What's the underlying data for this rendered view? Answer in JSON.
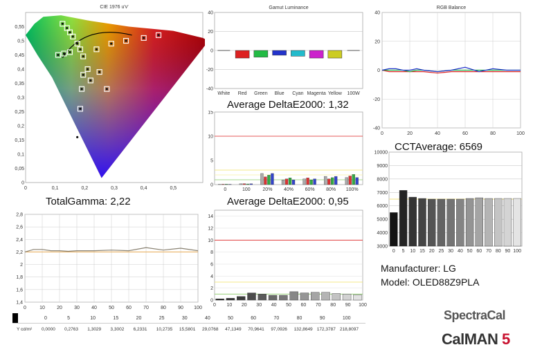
{
  "chart_data": [
    {
      "type": "scatter",
      "title": "CIE 1976 u'v'",
      "xlim": [
        0,
        0.6
      ],
      "ylim": [
        0,
        0.6
      ],
      "xticks": [
        "0",
        "0,1",
        "0,2",
        "0,3",
        "0,4",
        "0,5"
      ],
      "yticks": [
        "0",
        "0,05",
        "0,1",
        "0,15",
        "0,2",
        "0,25",
        "0,3",
        "0,35",
        "0,4",
        "0,45",
        "0,5",
        "0,55"
      ],
      "targets": [
        [
          0.125,
          0.56
        ],
        [
          0.14,
          0.545
        ],
        [
          0.15,
          0.53
        ],
        [
          0.16,
          0.515
        ],
        [
          0.175,
          0.49
        ],
        [
          0.185,
          0.47
        ],
        [
          0.195,
          0.445
        ],
        [
          0.11,
          0.45
        ],
        [
          0.13,
          0.455
        ],
        [
          0.15,
          0.46
        ],
        [
          0.24,
          0.47
        ],
        [
          0.29,
          0.49
        ],
        [
          0.34,
          0.5
        ],
        [
          0.4,
          0.51
        ],
        [
          0.45,
          0.52
        ],
        [
          0.21,
          0.4
        ],
        [
          0.25,
          0.39
        ],
        [
          0.195,
          0.38
        ],
        [
          0.22,
          0.36
        ],
        [
          0.19,
          0.33
        ],
        [
          0.275,
          0.33
        ],
        [
          0.185,
          0.26
        ],
        [
          0.175,
          0.16
        ]
      ],
      "measured": [
        [
          0.125,
          0.56
        ],
        [
          0.14,
          0.545
        ],
        [
          0.15,
          0.53
        ],
        [
          0.16,
          0.515
        ],
        [
          0.175,
          0.49
        ],
        [
          0.185,
          0.47
        ],
        [
          0.195,
          0.445
        ],
        [
          0.11,
          0.45
        ],
        [
          0.13,
          0.455
        ],
        [
          0.15,
          0.46
        ],
        [
          0.24,
          0.47
        ],
        [
          0.29,
          0.49
        ],
        [
          0.34,
          0.5
        ],
        [
          0.4,
          0.51
        ],
        [
          0.45,
          0.52
        ],
        [
          0.21,
          0.4
        ],
        [
          0.25,
          0.39
        ],
        [
          0.195,
          0.38
        ],
        [
          0.22,
          0.36
        ],
        [
          0.19,
          0.33
        ],
        [
          0.275,
          0.33
        ],
        [
          0.185,
          0.26
        ],
        [
          0.175,
          0.16
        ]
      ]
    },
    {
      "type": "bar",
      "title": "Gamut Luminance",
      "categories": [
        "White",
        "Red",
        "Green",
        "Blue",
        "Cyan",
        "Magenta",
        "Yellow",
        "100W"
      ],
      "values": [
        0,
        -8,
        -7,
        -5,
        -6,
        -8,
        -8,
        0
      ],
      "colors": [
        "#888888",
        "#dd2222",
        "#22bb44",
        "#2233cc",
        "#22bbcc",
        "#cc22cc",
        "#cccc22",
        "#888888"
      ],
      "ylim": [
        -40,
        40
      ],
      "yticks": [
        -40,
        -20,
        0,
        20,
        40
      ]
    },
    {
      "type": "line",
      "title": "RGB Balance",
      "x": [
        0,
        5,
        10,
        15,
        20,
        25,
        30,
        40,
        50,
        60,
        70,
        80,
        90,
        100
      ],
      "series": [
        {
          "color": "#dd2222",
          "values": [
            0,
            -1,
            -1,
            -1,
            -1,
            -1,
            -1,
            -2,
            -1,
            -1,
            -1,
            -1,
            -1,
            -1
          ]
        },
        {
          "color": "#22aa44",
          "values": [
            0,
            0,
            0,
            0,
            -1,
            0,
            0,
            -1,
            0,
            0,
            0,
            0,
            0,
            0
          ]
        },
        {
          "color": "#2233cc",
          "values": [
            0,
            1,
            1,
            0,
            0,
            1,
            0,
            -1,
            0,
            2,
            -1,
            1,
            0,
            0
          ]
        }
      ],
      "ylim": [
        -40,
        40
      ],
      "yticks": [
        -40,
        -20,
        0,
        20,
        40
      ],
      "xticks": [
        0,
        20,
        40,
        60,
        80,
        100
      ]
    },
    {
      "type": "bar",
      "title": "Average DeltaE2000: 1,32",
      "categories": [
        "0",
        "100",
        "20%",
        "40%",
        "60%",
        "80%",
        "100%"
      ],
      "values": [
        0.1,
        0.2,
        2.3,
        1.4,
        1.4,
        1.7,
        2.1
      ],
      "ylim": [
        0,
        15
      ],
      "yticks": [
        0,
        5,
        10,
        15
      ]
    },
    {
      "type": "bar",
      "title": "CCTAverage: 6569",
      "categories": [
        "0",
        "5",
        "10",
        "15",
        "20",
        "25",
        "30",
        "40",
        "50",
        "60",
        "70",
        "80",
        "90",
        "100"
      ],
      "values": [
        5500,
        7150,
        6650,
        6550,
        6500,
        6500,
        6500,
        6500,
        6550,
        6600,
        6550,
        6550,
        6550,
        6550
      ],
      "ylim": [
        3000,
        10000
      ],
      "yticks": [
        3000,
        4000,
        5000,
        6000,
        7000,
        8000,
        9000,
        10000
      ]
    },
    {
      "type": "line",
      "title": "TotalGamma: 2,22",
      "x": [
        0,
        5,
        10,
        15,
        20,
        25,
        30,
        40,
        50,
        60,
        70,
        80,
        90,
        100
      ],
      "series": [
        {
          "values": [
            2.2,
            2.24,
            2.24,
            2.22,
            2.22,
            2.21,
            2.22,
            2.22,
            2.23,
            2.22,
            2.27,
            2.23,
            2.26,
            2.22
          ]
        }
      ],
      "ylim": [
        1.4,
        2.8
      ],
      "yticks": [
        "1,4",
        "1,6",
        "1,8",
        "2",
        "2,2",
        "2,4",
        "2,6",
        "2,8"
      ],
      "xticks": [
        0,
        10,
        20,
        30,
        40,
        50,
        60,
        70,
        80,
        90,
        100
      ]
    },
    {
      "type": "bar",
      "title": "Average DeltaE2000: 0,95",
      "categories": [
        "0",
        "5",
        "10",
        "15",
        "20",
        "25",
        "30",
        "40",
        "50",
        "60",
        "70",
        "80",
        "90",
        "100"
      ],
      "values": [
        0.2,
        0.3,
        0.6,
        1.2,
        1.0,
        0.8,
        0.8,
        1.4,
        1.2,
        1.3,
        1.3,
        1.1,
        1.0,
        0.9
      ],
      "ylim": [
        0,
        15
      ],
      "yticks": [
        0,
        2,
        4,
        6,
        8,
        10,
        12,
        14
      ],
      "xticks": [
        0,
        10,
        20,
        30,
        40,
        50,
        60,
        70,
        80,
        90,
        100
      ]
    }
  ],
  "luminance": {
    "label": "Y cd/m²",
    "levels": [
      "0",
      "5",
      "10",
      "15",
      "20",
      "25",
      "30",
      "40",
      "50",
      "60",
      "70",
      "80",
      "90",
      "100"
    ],
    "values": [
      "0,0000",
      "0,2763",
      "1,3029",
      "3,3002",
      "6,2331",
      "10,2735",
      "15,5801",
      "29,0768",
      "47,1349",
      "70,9641",
      "97,0926",
      "132,8649",
      "172,3787",
      "218,8097"
    ]
  },
  "info": {
    "manufacturer": "Manufacturer: LG",
    "model": "Model: OLED88Z9PLA"
  },
  "brand": {
    "spectracal": "SpectraCal",
    "calman": "CalMAN",
    "version": "5"
  }
}
